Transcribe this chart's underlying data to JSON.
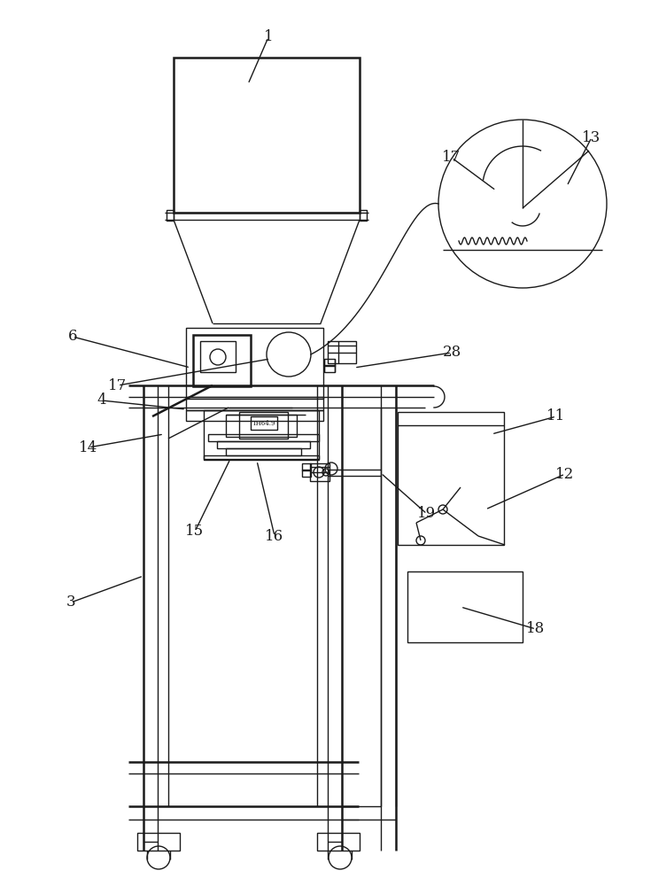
{
  "bg_color": "#ffffff",
  "line_color": "#1a1a1a",
  "lw": 1.0,
  "tlw": 1.8,
  "fig_width": 7.35,
  "fig_height": 10.0
}
